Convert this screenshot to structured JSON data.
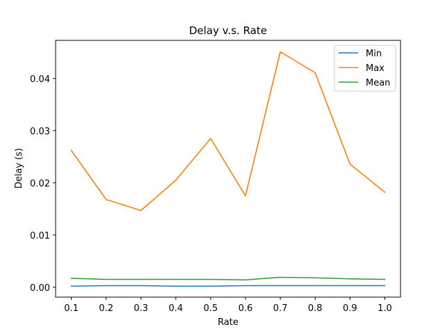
{
  "chart_data": {
    "type": "line",
    "title": "Delay v.s. Rate",
    "xlabel": "Rate",
    "ylabel": "Delay (s)",
    "x": [
      0.1,
      0.2,
      0.3,
      0.4,
      0.5,
      0.6,
      0.7,
      0.8,
      0.9,
      1.0
    ],
    "xticks": [
      "0.1",
      "0.2",
      "0.3",
      "0.4",
      "0.5",
      "0.6",
      "0.7",
      "0.8",
      "0.9",
      "1.0"
    ],
    "yticks": [
      "0.00",
      "0.01",
      "0.02",
      "0.03",
      "0.04"
    ],
    "ytick_values": [
      0.0,
      0.01,
      0.02,
      0.03,
      0.04
    ],
    "xlim": [
      0.055,
      1.045
    ],
    "ylim": [
      -0.0019,
      0.0473
    ],
    "grid": false,
    "legend_position": "top-right",
    "series": [
      {
        "name": "Min",
        "color": "#1f77b4",
        "values": [
          0.0002,
          0.0003,
          0.0003,
          0.0002,
          0.0002,
          0.0003,
          0.0003,
          0.0003,
          0.0003,
          0.0003
        ]
      },
      {
        "name": "Max",
        "color": "#ff7f0e",
        "values": [
          0.0262,
          0.0168,
          0.0147,
          0.0205,
          0.0285,
          0.0175,
          0.0451,
          0.0411,
          0.0236,
          0.0182
        ]
      },
      {
        "name": "Mean",
        "color": "#2ca02c",
        "values": [
          0.0017,
          0.0015,
          0.0015,
          0.0015,
          0.0015,
          0.0014,
          0.0019,
          0.0018,
          0.0016,
          0.0015
        ]
      }
    ]
  }
}
